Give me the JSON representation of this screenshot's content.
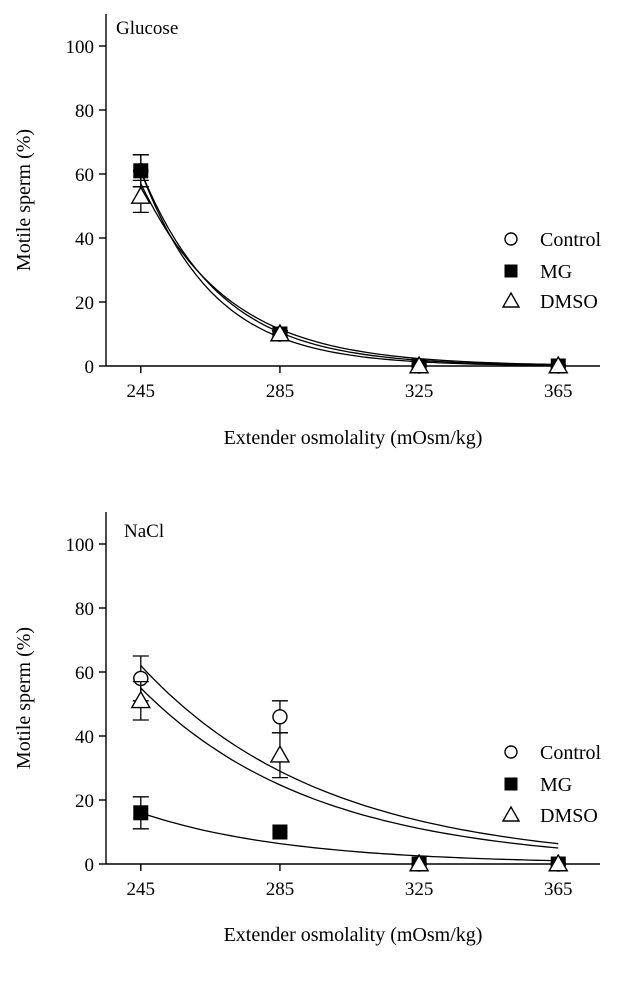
{
  "chart_data": [
    {
      "type": "scatter",
      "title": "Glucose",
      "xlabel": "Extender osmolality (mOsm/kg)",
      "ylabel": "Motile sperm (%)",
      "xlim": [
        235,
        377
      ],
      "ylim": [
        0,
        110
      ],
      "xticks": [
        245,
        285,
        325,
        365
      ],
      "yticks": [
        0,
        20,
        40,
        60,
        80,
        100
      ],
      "legend_position": "right",
      "series": [
        {
          "name": "Control",
          "marker": "circle-open",
          "x": [
            245,
            285,
            325,
            365
          ],
          "y": [
            61,
            10,
            0,
            0
          ],
          "err": [
            5,
            1,
            0,
            0
          ],
          "fit": {
            "a": 61,
            "k": 0.048
          }
        },
        {
          "name": "MG",
          "marker": "square-filled",
          "x": [
            245,
            285,
            325,
            365
          ],
          "y": [
            61,
            10,
            0,
            0
          ],
          "err": [
            5,
            1,
            0,
            0
          ],
          "fit": {
            "a": 61,
            "k": 0.044
          }
        },
        {
          "name": "DMSO",
          "marker": "triangle-open",
          "x": [
            245,
            285,
            325,
            365
          ],
          "y": [
            53,
            10,
            0,
            0
          ],
          "err": [
            5,
            1,
            0,
            0
          ],
          "fit": {
            "a": 57,
            "k": 0.04
          }
        }
      ]
    },
    {
      "type": "scatter",
      "title": "NaCl",
      "xlabel": "Extender osmolality (mOsm/kg)",
      "ylabel": "Motile sperm (%)",
      "xlim": [
        235,
        377
      ],
      "ylim": [
        0,
        110
      ],
      "xticks": [
        245,
        285,
        325,
        365
      ],
      "yticks": [
        0,
        20,
        40,
        60,
        80,
        100
      ],
      "legend_position": "right",
      "series": [
        {
          "name": "Control",
          "marker": "circle-open",
          "x": [
            245,
            285,
            325,
            365
          ],
          "y": [
            58,
            46,
            0,
            0
          ],
          "err": [
            7,
            5,
            0,
            0
          ],
          "fit": {
            "a": 62,
            "k": 0.019
          }
        },
        {
          "name": "MG",
          "marker": "square-filled",
          "x": [
            245,
            285,
            325,
            365
          ],
          "y": [
            16,
            10,
            0,
            0
          ],
          "err": [
            5,
            0,
            0,
            0
          ],
          "fit": {
            "a": 16,
            "k": 0.023
          }
        },
        {
          "name": "DMSO",
          "marker": "triangle-open",
          "x": [
            245,
            285,
            325,
            365
          ],
          "y": [
            51,
            34,
            0,
            0
          ],
          "err": [
            6,
            7,
            0,
            0
          ],
          "fit": {
            "a": 55,
            "k": 0.02
          }
        }
      ]
    }
  ]
}
